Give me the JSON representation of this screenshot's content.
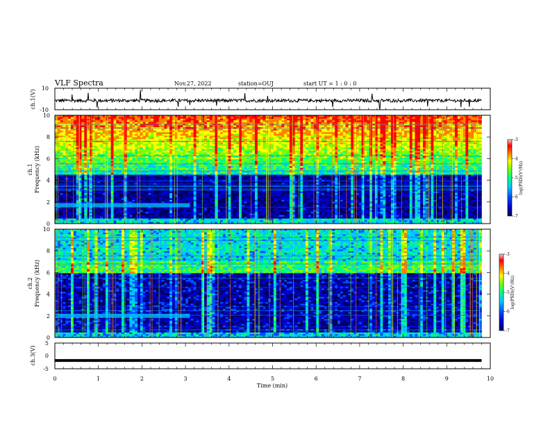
{
  "header": {
    "title": "VLF Spectra",
    "date": "Nov.27, 2022",
    "station": "station=OUJ",
    "start": "start UT =  1 : 0  : 0"
  },
  "colors": {
    "background": "#ffffff",
    "axes": "#000000",
    "colormap": [
      "#000060",
      "#0000c8",
      "#0050ff",
      "#00c8ff",
      "#00ff80",
      "#80ff00",
      "#ffff00",
      "#ff8000",
      "#ff0000",
      "#ffc0c0"
    ]
  },
  "chart_data": [
    {
      "type": "line",
      "panel": "ch1-waveform",
      "ylabel": "ch.1(V)",
      "ylim": [
        -10,
        10
      ],
      "yticks": [
        10,
        -10
      ],
      "x_range_min": [
        0,
        9.8
      ],
      "baseline_v": -1.5,
      "noise_amplitude_v": 3
    },
    {
      "type": "heatmap",
      "panel": "ch1-spectrogram",
      "ylabel": "ch.1 Frequency (kHz)",
      "ylim": [
        0,
        10
      ],
      "yticks": [
        "0",
        "2",
        "4",
        "6",
        "8",
        "10"
      ],
      "x_range_min": [
        0,
        9.8
      ],
      "hiss_lower_edge_khz": 4.5,
      "hiss_upper_khz": 10,
      "band_khz": 1.7,
      "band_end_min": 3.1,
      "colorbar": {
        "label": "log(PSD)(V²/Hz)",
        "range": [
          -7,
          -3
        ],
        "ticks": [
          "-3",
          "-4",
          "-5",
          "-6",
          "-7"
        ]
      }
    },
    {
      "type": "heatmap",
      "panel": "ch2-spectrogram",
      "ylabel": "ch.2 Frequency (kHz)",
      "ylim": [
        0,
        10
      ],
      "yticks": [
        "0",
        "2",
        "4",
        "6",
        "8",
        "10"
      ],
      "x_range_min": [
        0,
        9.8
      ],
      "emission_band_khz": [
        6.0,
        7.0
      ],
      "band_khz": 2.0,
      "band_end_min": 3.1,
      "colorbar": {
        "label": "log(PSD)(V²/Hz)",
        "range": [
          -7,
          -3
        ],
        "ticks": [
          "-3",
          "-4",
          "-5",
          "-6",
          "-7"
        ]
      }
    },
    {
      "type": "line",
      "panel": "ch3-waveform",
      "ylabel": "ch.3(V)",
      "ylim": [
        -5,
        5
      ],
      "yticks": [
        "5",
        "0",
        "-5"
      ],
      "x_range_min": [
        0,
        9.8
      ],
      "baseline_v": -1.8
    }
  ],
  "xaxis": {
    "label": "Time (min)",
    "ticks": [
      "0",
      "1",
      "2",
      "3",
      "4",
      "5",
      "6",
      "7",
      "8",
      "9",
      "10"
    ],
    "range": [
      0,
      10
    ]
  }
}
